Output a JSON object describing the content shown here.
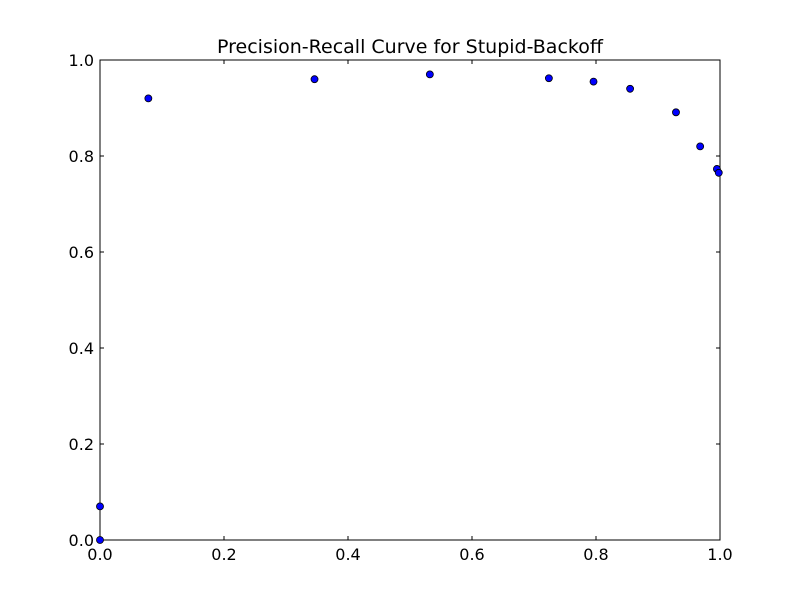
{
  "chart_data": {
    "type": "scatter",
    "title": "Precision-Recall Curve for Stupid-Backoff",
    "xlabel": "",
    "ylabel": "",
    "xlim": [
      0.0,
      1.0
    ],
    "ylim": [
      0.0,
      1.0
    ],
    "xticks": [
      "0.0",
      "0.2",
      "0.4",
      "0.6",
      "0.8",
      "1.0"
    ],
    "yticks": [
      "0.0",
      "0.2",
      "0.4",
      "0.6",
      "0.8",
      "1.0"
    ],
    "grid": false,
    "legend": "none",
    "marker_color": "#0000ff",
    "marker_edge_color": "#000000",
    "points": [
      {
        "x": 0.0,
        "y": 0.0
      },
      {
        "x": 0.0,
        "y": 0.07
      },
      {
        "x": 0.078,
        "y": 0.92
      },
      {
        "x": 0.346,
        "y": 0.96
      },
      {
        "x": 0.532,
        "y": 0.97
      },
      {
        "x": 0.724,
        "y": 0.962
      },
      {
        "x": 0.796,
        "y": 0.955
      },
      {
        "x": 0.855,
        "y": 0.94
      },
      {
        "x": 0.929,
        "y": 0.891
      },
      {
        "x": 0.968,
        "y": 0.82
      },
      {
        "x": 0.995,
        "y": 0.773
      },
      {
        "x": 0.998,
        "y": 0.765
      }
    ]
  }
}
